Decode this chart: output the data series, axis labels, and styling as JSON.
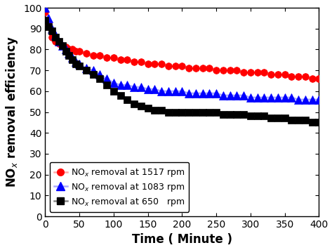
{
  "title": "",
  "xlabel": "Time ( Minute )",
  "ylabel": "NO$_x$ removal efficiency",
  "xlim": [
    0,
    400
  ],
  "ylim": [
    0,
    100
  ],
  "xticks": [
    0,
    50,
    100,
    150,
    200,
    250,
    300,
    350,
    400
  ],
  "yticks": [
    0,
    10,
    20,
    30,
    40,
    50,
    60,
    70,
    80,
    90,
    100
  ],
  "series": [
    {
      "label": "NO$_x$ removal at 1517 rpm",
      "line_color": "#ffaaaa",
      "marker_color": "red",
      "marker": "o",
      "markersize": 7,
      "x": [
        0,
        5,
        10,
        15,
        20,
        25,
        30,
        35,
        40,
        45,
        50,
        60,
        70,
        80,
        90,
        100,
        110,
        120,
        130,
        140,
        150,
        160,
        170,
        180,
        190,
        200,
        210,
        220,
        230,
        240,
        250,
        260,
        270,
        280,
        290,
        300,
        310,
        320,
        330,
        340,
        350,
        360,
        370,
        380,
        390,
        400
      ],
      "y": [
        98,
        92,
        86,
        84,
        83,
        82,
        81,
        80,
        80,
        79,
        79,
        78,
        77,
        77,
        76,
        76,
        75,
        75,
        74,
        74,
        73,
        73,
        73,
        72,
        72,
        72,
        71,
        71,
        71,
        71,
        70,
        70,
        70,
        70,
        69,
        69,
        69,
        69,
        68,
        68,
        68,
        67,
        67,
        67,
        66,
        66
      ]
    },
    {
      "label": "NO$_x$ removal at 1083 rpm",
      "line_color": "#aaaaff",
      "marker_color": "blue",
      "marker": "^",
      "markersize": 8,
      "x": [
        0,
        5,
        10,
        15,
        20,
        25,
        30,
        35,
        40,
        45,
        50,
        60,
        70,
        80,
        90,
        100,
        110,
        120,
        130,
        140,
        150,
        160,
        170,
        180,
        190,
        200,
        210,
        220,
        230,
        240,
        250,
        260,
        270,
        280,
        290,
        300,
        310,
        320,
        330,
        340,
        350,
        360,
        370,
        380,
        390,
        400
      ],
      "y": [
        100,
        95,
        90,
        87,
        84,
        82,
        80,
        78,
        76,
        74,
        73,
        71,
        70,
        68,
        66,
        64,
        63,
        63,
        62,
        62,
        61,
        61,
        60,
        60,
        60,
        60,
        59,
        59,
        59,
        59,
        59,
        58,
        58,
        58,
        58,
        57,
        57,
        57,
        57,
        57,
        57,
        57,
        56,
        56,
        56,
        56
      ]
    },
    {
      "label": "NO$_x$ removal at 650   rpm",
      "line_color": "#888888",
      "marker_color": "black",
      "marker": "s",
      "markersize": 7,
      "x": [
        0,
        5,
        10,
        15,
        20,
        25,
        30,
        35,
        40,
        45,
        50,
        60,
        70,
        80,
        90,
        100,
        110,
        120,
        130,
        140,
        150,
        160,
        170,
        180,
        190,
        200,
        210,
        220,
        230,
        240,
        250,
        260,
        270,
        280,
        290,
        300,
        310,
        320,
        330,
        340,
        350,
        360,
        370,
        380,
        390,
        400
      ],
      "y": [
        94,
        91,
        89,
        86,
        84,
        82,
        79,
        77,
        75,
        73,
        72,
        70,
        68,
        66,
        63,
        60,
        58,
        56,
        54,
        53,
        52,
        51,
        51,
        50,
        50,
        50,
        50,
        50,
        50,
        50,
        50,
        49,
        49,
        49,
        49,
        48,
        48,
        48,
        47,
        47,
        47,
        46,
        46,
        46,
        45,
        45
      ]
    }
  ]
}
